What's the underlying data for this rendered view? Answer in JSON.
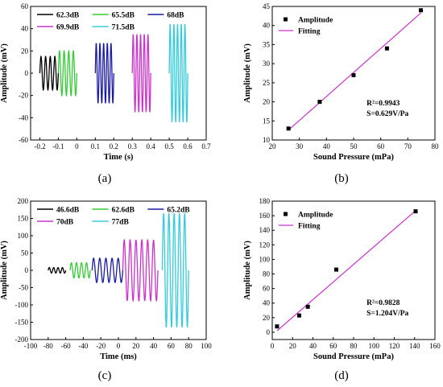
{
  "captions": [
    "(a)",
    "(b)",
    "(c)",
    "(d)"
  ],
  "chart_data": [
    {
      "panel": "(a)",
      "type": "line",
      "xlabel": "Time (s)",
      "ylabel": "Amplitude (mV)",
      "xlim": [
        -0.25,
        0.7
      ],
      "ylim": [
        -60,
        60
      ],
      "xticks": [
        -0.2,
        -0.1,
        0.0,
        0.1,
        0.2,
        0.3,
        0.4,
        0.5,
        0.6,
        0.7
      ],
      "yticks": [
        -60,
        -40,
        -20,
        0,
        20,
        40,
        60
      ],
      "legend_position": "top",
      "series": [
        {
          "name": "62.3dB",
          "color": "#000000",
          "x_range": [
            -0.2,
            -0.1
          ],
          "amplitude": 15,
          "cycles": 4
        },
        {
          "name": "65.5dB",
          "color": "#33cc33",
          "x_range": [
            -0.1,
            0.0
          ],
          "amplitude": 20,
          "cycles": 4
        },
        {
          "name": "68dB",
          "color": "#1a1aa6",
          "x_range": [
            0.1,
            0.2
          ],
          "amplitude": 27,
          "cycles": 5
        },
        {
          "name": "69.9dB",
          "color": "#cc33cc",
          "x_range": [
            0.3,
            0.4
          ],
          "amplitude": 35,
          "cycles": 5
        },
        {
          "name": "71.5dB",
          "color": "#33ccdd",
          "x_range": [
            0.5,
            0.6
          ],
          "amplitude": 44,
          "cycles": 5
        }
      ]
    },
    {
      "panel": "(b)",
      "type": "scatter",
      "xlabel": "Sound Pressure (mPa)",
      "ylabel": "Amplitude (mV)",
      "xlim": [
        20,
        80
      ],
      "ylim": [
        10,
        45
      ],
      "xticks": [
        20,
        30,
        40,
        50,
        60,
        70,
        80
      ],
      "yticks": [
        10,
        15,
        20,
        25,
        30,
        35,
        40,
        45
      ],
      "legend": [
        "Amplitude",
        "Fitting"
      ],
      "points": {
        "x": [
          26,
          37.5,
          50,
          62.3,
          74.8
        ],
        "y": [
          13,
          20,
          27,
          34,
          44
        ]
      },
      "fit_line": {
        "x": [
          26,
          74.8
        ],
        "y": [
          12.6,
          43.3
        ]
      },
      "annotations": [
        "R²=0.9943",
        "S=0.629V/Pa"
      ]
    },
    {
      "panel": "(c)",
      "type": "line",
      "xlabel": "Time (ms)",
      "ylabel": "Amplitude (mV)",
      "xlim": [
        -100,
        100
      ],
      "ylim": [
        -200,
        200
      ],
      "xticks": [
        -100,
        -80,
        -60,
        -40,
        -20,
        0,
        20,
        40,
        60,
        80,
        100
      ],
      "yticks": [
        -200,
        -150,
        -100,
        -50,
        0,
        50,
        100,
        150,
        200
      ],
      "legend_position": "top",
      "series": [
        {
          "name": "46.6dB",
          "color": "#000000",
          "x_range": [
            -80,
            -60
          ],
          "amplitude": 8,
          "cycles": 4
        },
        {
          "name": "62.6dB",
          "color": "#33cc33",
          "x_range": [
            -55,
            -32
          ],
          "amplitude": 22,
          "cycles": 4
        },
        {
          "name": "65.2dB",
          "color": "#1a1aa6",
          "x_range": [
            -30,
            5
          ],
          "amplitude": 35,
          "cycles": 5
        },
        {
          "name": "70dB",
          "color": "#cc33cc",
          "x_range": [
            5,
            45
          ],
          "amplitude": 88,
          "cycles": 6
        },
        {
          "name": "77dB",
          "color": "#33ccdd",
          "x_range": [
            50,
            80
          ],
          "amplitude": 165,
          "cycles": 5
        }
      ]
    },
    {
      "panel": "(d)",
      "type": "scatter",
      "xlabel": "Sound Pressure (mPa)",
      "ylabel": "Amplitude (mV)",
      "xlim": [
        0,
        160
      ],
      "ylim": [
        -10,
        180
      ],
      "xticks": [
        0,
        20,
        40,
        60,
        80,
        100,
        120,
        140,
        160
      ],
      "yticks": [
        0,
        20,
        40,
        60,
        80,
        100,
        120,
        140,
        160,
        180
      ],
      "legend": [
        "Amplitude",
        "Fitting"
      ],
      "points": {
        "x": [
          4.7,
          26.5,
          35,
          63,
          141
        ],
        "y": [
          8,
          23,
          35,
          86,
          166
        ]
      },
      "fit_line": {
        "x": [
          4.7,
          141
        ],
        "y": [
          2,
          167
        ]
      },
      "annotations": [
        "R²=0.9828",
        "S=1.204V/Pa"
      ]
    }
  ]
}
